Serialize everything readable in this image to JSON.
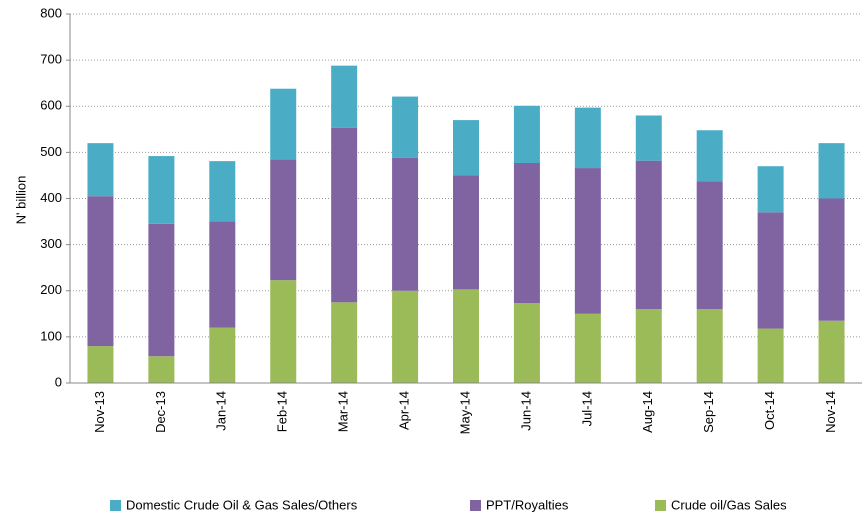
{
  "chart_data": {
    "type": "stacked_bar",
    "y_label": "N' billion",
    "categories": [
      "Nov-13",
      "Dec-13",
      "Jan-14",
      "Feb-14",
      "Mar-14",
      "Apr-14",
      "May-14",
      "Jun-14",
      "Jul-14",
      "Aug-14",
      "Sep-14",
      "Oct-14",
      "Nov-14"
    ],
    "series": [
      {
        "name": "Domestic Crude Oil & Gas Sales/Others",
        "color": "#4bacc6",
        "values": [
          115,
          147,
          131,
          153,
          135,
          133,
          120,
          124,
          131,
          98,
          111,
          100,
          120
        ]
      },
      {
        "name": "PPT/Royalties",
        "color": "#8064a2",
        "values": [
          325,
          287,
          230,
          262,
          378,
          288,
          247,
          304,
          316,
          322,
          277,
          252,
          265
        ]
      },
      {
        "name": "Crude oil/Gas Sales",
        "color": "#9bbb59",
        "values": [
          80,
          58,
          120,
          223,
          175,
          200,
          203,
          173,
          150,
          160,
          160,
          118,
          135
        ]
      }
    ],
    "ylim": [
      0,
      800
    ],
    "yticks": [
      0,
      100,
      200,
      300,
      400,
      500,
      600,
      700,
      800
    ],
    "grid": true
  }
}
